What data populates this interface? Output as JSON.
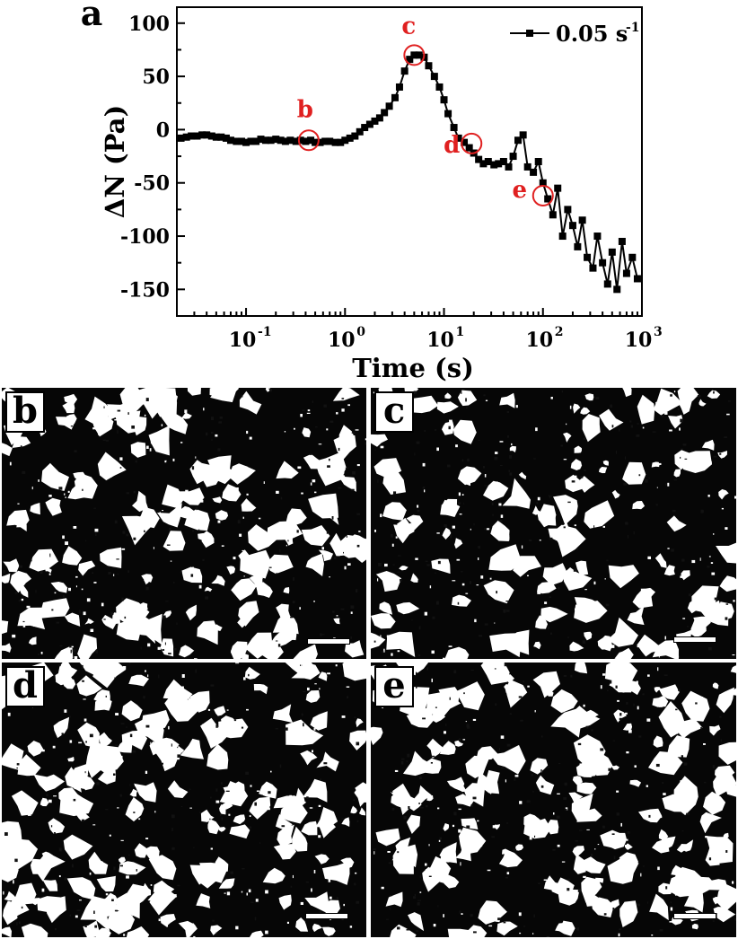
{
  "chart_data": {
    "type": "scatter",
    "panel_label": "a",
    "xlabel": "Time (s)",
    "ylabel": "ΔN (Pa)",
    "xscale": "log",
    "xlim": [
      0.02,
      1000
    ],
    "ylim": [
      -175,
      115
    ],
    "x_ticks": [
      {
        "value": 0.1,
        "base": "10",
        "exp": "-1"
      },
      {
        "value": 1,
        "base": "10",
        "exp": "0"
      },
      {
        "value": 10,
        "base": "10",
        "exp": "1"
      },
      {
        "value": 100,
        "base": "10",
        "exp": "2"
      },
      {
        "value": 1000,
        "base": "10",
        "exp": "3"
      }
    ],
    "y_ticks": [
      "100",
      "50",
      "0",
      "-50",
      "-100",
      "-150"
    ],
    "y_tick_values": [
      100,
      50,
      0,
      -50,
      -100,
      -150
    ],
    "legend": {
      "label_main": "0.05 s",
      "label_sup": "-1",
      "position": "top-right"
    },
    "series": [
      {
        "x": [
          0.022,
          0.025,
          0.028,
          0.032,
          0.036,
          0.04,
          0.045,
          0.05,
          0.056,
          0.063,
          0.07,
          0.08,
          0.09,
          0.1,
          0.112,
          0.126,
          0.141,
          0.158,
          0.178,
          0.2,
          0.224,
          0.25,
          0.28,
          0.32,
          0.355,
          0.4,
          0.45,
          0.5,
          0.56,
          0.63,
          0.7,
          0.8,
          0.9,
          1.0,
          1.12,
          1.26,
          1.41,
          1.58,
          1.78,
          2.0,
          2.24,
          2.5,
          2.8,
          3.2,
          3.55,
          4.0,
          4.5,
          5.0,
          5.6,
          6.3,
          7.0,
          8.0,
          9.0,
          10,
          11,
          12.6,
          14,
          16,
          18,
          20,
          22.4,
          25,
          28,
          32,
          35.5,
          40,
          45,
          50,
          56,
          63,
          70,
          80,
          90,
          100,
          112,
          126,
          141,
          158,
          178,
          200,
          224,
          250,
          280,
          320,
          355,
          400,
          450,
          500,
          560,
          630,
          700,
          800,
          900
        ],
        "y": [
          -8,
          -7,
          -6,
          -6,
          -5,
          -5,
          -6,
          -7,
          -7,
          -8,
          -10,
          -11,
          -11,
          -12,
          -11,
          -11,
          -9,
          -10,
          -10,
          -9,
          -10,
          -11,
          -10,
          -11,
          -10,
          -11,
          -10,
          -12,
          -12,
          -11,
          -11,
          -12,
          -12,
          -10,
          -8,
          -6,
          -2,
          2,
          5,
          8,
          11,
          16,
          22,
          30,
          40,
          55,
          66,
          70,
          70,
          68,
          60,
          50,
          40,
          28,
          15,
          2,
          -8,
          -12,
          -17,
          -22,
          -28,
          -32,
          -30,
          -33,
          -32,
          -30,
          -35,
          -25,
          -10,
          -5,
          -35,
          -40,
          -30,
          -50,
          -65,
          -80,
          -55,
          -100,
          -75,
          -90,
          -110,
          -85,
          -120,
          -130,
          -100,
          -125,
          -145,
          -115,
          -150,
          -105,
          -135,
          -120,
          -140
        ]
      }
    ],
    "annotations": [
      {
        "label": "b",
        "x": 0.43,
        "y": -10
      },
      {
        "label": "c",
        "x": 5.0,
        "y": 70
      },
      {
        "label": "d",
        "x": 19,
        "y": -13
      },
      {
        "label": "e",
        "x": 100,
        "y": -62
      }
    ],
    "annotation_color": "#e02020",
    "marker_color": "#000000"
  },
  "panels": [
    {
      "label": "b",
      "scale_bar": true
    },
    {
      "label": "c",
      "scale_bar": true
    },
    {
      "label": "d",
      "scale_bar": true
    },
    {
      "label": "e",
      "scale_bar": true
    }
  ]
}
